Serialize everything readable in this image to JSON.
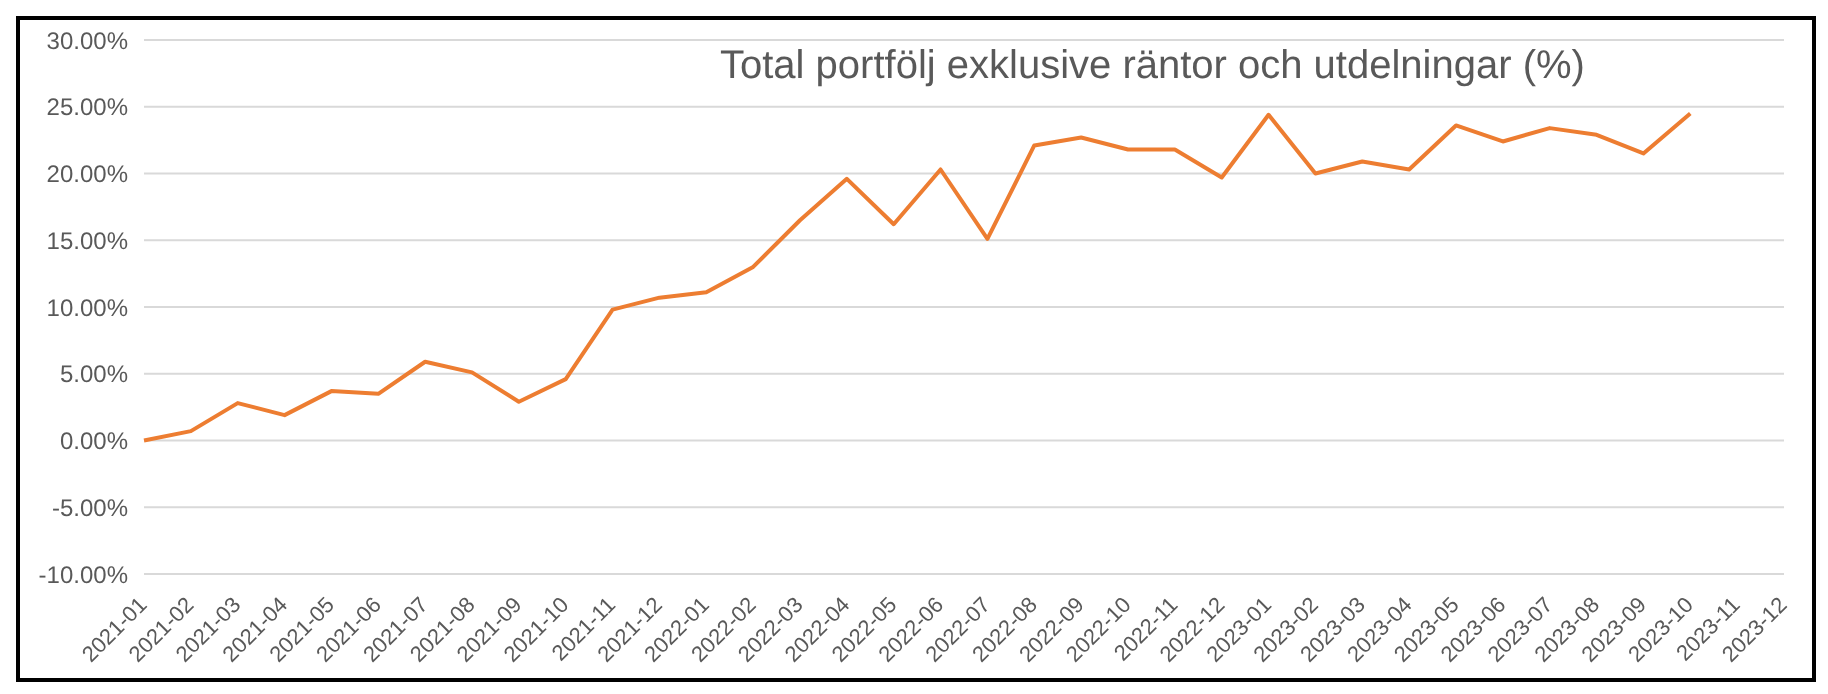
{
  "chart_data": {
    "type": "line",
    "title": "Total portfölj exklusive räntor och utdelningar (%)",
    "categories": [
      "2021-01",
      "2021-02",
      "2021-03",
      "2021-04",
      "2021-05",
      "2021-06",
      "2021-07",
      "2021-08",
      "2021-09",
      "2021-10",
      "2021-11",
      "2021-12",
      "2022-01",
      "2022-02",
      "2022-03",
      "2022-04",
      "2022-05",
      "2022-06",
      "2022-07",
      "2022-08",
      "2022-09",
      "2022-10",
      "2022-11",
      "2022-12",
      "2023-01",
      "2023-02",
      "2023-03",
      "2023-04",
      "2023-05",
      "2023-06",
      "2023-07",
      "2023-08",
      "2023-09",
      "2023-10",
      "2023-11",
      "2023-12"
    ],
    "series": [
      {
        "color": "#ed7d31",
        "values": [
          0,
          0.7,
          2.8,
          1.9,
          3.7,
          3.5,
          5.9,
          5.1,
          2.9,
          4.6,
          9.8,
          10.7,
          11.1,
          13.0,
          16.5,
          19.6,
          16.2,
          20.3,
          15.1,
          22.1,
          22.7,
          21.8,
          21.8,
          19.7,
          24.4,
          20.0,
          20.9,
          20.3,
          23.6,
          22.4,
          23.4,
          22.9,
          21.5,
          24.5,
          null,
          null
        ]
      }
    ],
    "ylim": [
      -10,
      30
    ],
    "yticks": [
      {
        "value": -10,
        "label": "-10.00%"
      },
      {
        "value": -5,
        "label": "-5.00%"
      },
      {
        "value": 0,
        "label": "0.00%"
      },
      {
        "value": 5,
        "label": "5.00%"
      },
      {
        "value": 10,
        "label": "10.00%"
      },
      {
        "value": 15,
        "label": "15.00%"
      },
      {
        "value": 20,
        "label": "20.00%"
      },
      {
        "value": 25,
        "label": "25.00%"
      },
      {
        "value": 30,
        "label": "30.00%"
      }
    ],
    "grid": "y",
    "marker": "none",
    "line_style": "solid",
    "legend": false
  }
}
